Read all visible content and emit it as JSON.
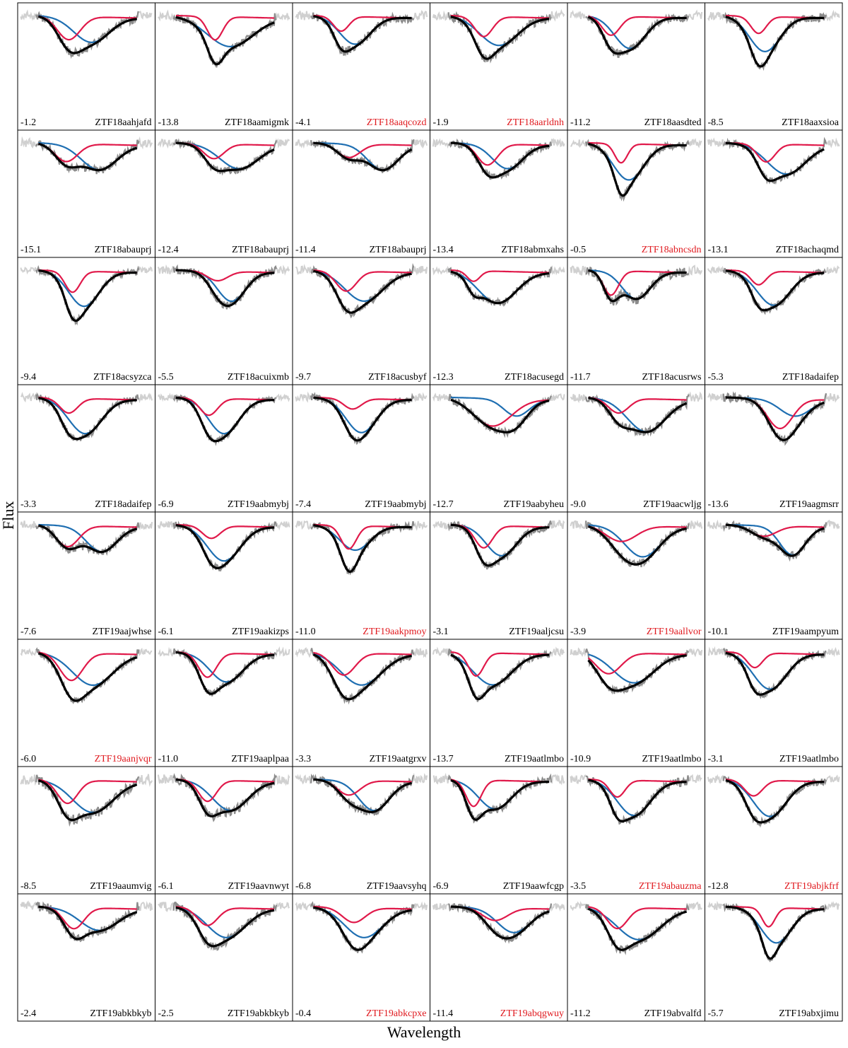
{
  "xlabel": "Wavelength",
  "ylabel": "Flux",
  "colors": {
    "observed_edge": "#d0d0d0",
    "observed": "#8c8c8c",
    "total_fit": "#000000",
    "hv_component": "#e0194a",
    "pv_component": "#1f6fb2",
    "highlight_name": "#e0191e",
    "normal_name": "#000000"
  },
  "chart_data": {
    "type": "line",
    "xlabel": "Wavelength",
    "ylabel": "Flux",
    "grid": false,
    "layout": "grid of panels, 8 rows x 6 columns",
    "series_styles": {
      "observed": "grey noisy spectrum",
      "total_fit": "black thick line",
      "hv_component": "red line",
      "pv_component": "blue line"
    },
    "panels": [
      {
        "phase": "-1.2",
        "name": "ZTF18aahjafd",
        "highlight": false,
        "red": [
          0.36,
          0.22,
          0.09
        ],
        "blue": [
          0.54,
          0.24,
          0.14
        ],
        "noise": 0.35
      },
      {
        "phase": "-13.8",
        "name": "ZTF18aamigmk",
        "highlight": false,
        "red": [
          0.43,
          0.22,
          0.06
        ],
        "blue": [
          0.55,
          0.28,
          0.18
        ],
        "noise": 0.35
      },
      {
        "phase": "-4.1",
        "name": "ZTF18aaqcozd",
        "highlight": true,
        "red": [
          0.34,
          0.14,
          0.06
        ],
        "blue": [
          0.45,
          0.26,
          0.12
        ],
        "noise": 0.4
      },
      {
        "phase": "-1.9",
        "name": "ZTF18aarldnh",
        "highlight": true,
        "red": [
          0.38,
          0.19,
          0.07
        ],
        "blue": [
          0.5,
          0.27,
          0.15
        ],
        "noise": 0.4
      },
      {
        "phase": "-11.2",
        "name": "ZTF18aasdted",
        "highlight": false,
        "red": [
          0.3,
          0.18,
          0.07
        ],
        "blue": [
          0.45,
          0.3,
          0.12
        ],
        "noise": 0.35
      },
      {
        "phase": "-8.5",
        "name": "ZTF18aaxsioa",
        "highlight": false,
        "red": [
          0.38,
          0.16,
          0.06
        ],
        "blue": [
          0.43,
          0.33,
          0.12
        ],
        "noise": 0.35
      },
      {
        "phase": "-15.1",
        "name": "ZTF18abauprj",
        "highlight": false,
        "red": [
          0.34,
          0.17,
          0.09
        ],
        "blue": [
          0.6,
          0.24,
          0.14
        ],
        "noise": 0.35
      },
      {
        "phase": "-12.4",
        "name": "ZTF18abauprj",
        "highlight": false,
        "red": [
          0.42,
          0.14,
          0.08
        ],
        "blue": [
          0.62,
          0.23,
          0.15
        ],
        "noise": 0.3
      },
      {
        "phase": "-11.4",
        "name": "ZTF18abauprj",
        "highlight": false,
        "red": [
          0.4,
          0.13,
          0.09
        ],
        "blue": [
          0.67,
          0.24,
          0.12
        ],
        "noise": 0.3
      },
      {
        "phase": "-13.4",
        "name": "ZTF18abmxahs",
        "highlight": false,
        "red": [
          0.41,
          0.2,
          0.08
        ],
        "blue": [
          0.57,
          0.23,
          0.12
        ],
        "noise": 0.35
      },
      {
        "phase": "-0.5",
        "name": "ZTF18abncsdn",
        "highlight": true,
        "red": [
          0.38,
          0.18,
          0.05
        ],
        "blue": [
          0.44,
          0.34,
          0.12
        ],
        "noise": 0.3
      },
      {
        "phase": "-13.1",
        "name": "ZTF18achaqmd",
        "highlight": false,
        "red": [
          0.44,
          0.17,
          0.07
        ],
        "blue": [
          0.6,
          0.28,
          0.15
        ],
        "noise": 0.3
      },
      {
        "phase": "-9.4",
        "name": "ZTF18acsyzca",
        "highlight": false,
        "red": [
          0.39,
          0.2,
          0.06
        ],
        "blue": [
          0.48,
          0.33,
          0.12
        ],
        "noise": 0.25
      },
      {
        "phase": "-5.5",
        "name": "ZTF18acuixmb",
        "highlight": false,
        "red": [
          0.45,
          0.09,
          0.08
        ],
        "blue": [
          0.56,
          0.28,
          0.11
        ],
        "noise": 0.35
      },
      {
        "phase": "-9.7",
        "name": "ZTF18acusbyf",
        "highlight": false,
        "red": [
          0.38,
          0.19,
          0.08
        ],
        "blue": [
          0.52,
          0.28,
          0.15
        ],
        "noise": 0.35
      },
      {
        "phase": "-12.3",
        "name": "ZTF18acusegd",
        "highlight": false,
        "red": [
          0.3,
          0.1,
          0.05
        ],
        "blue": [
          0.49,
          0.3,
          0.15
        ],
        "noise": 0.3
      },
      {
        "phase": "-11.7",
        "name": "ZTF18acusrws",
        "highlight": false,
        "red": [
          0.3,
          0.23,
          0.06
        ],
        "blue": [
          0.5,
          0.26,
          0.11
        ],
        "noise": 0.45
      },
      {
        "phase": "-5.3",
        "name": "ZTF18adaifep",
        "highlight": false,
        "red": [
          0.38,
          0.13,
          0.06
        ],
        "blue": [
          0.5,
          0.32,
          0.13
        ],
        "noise": 0.3
      },
      {
        "phase": "-3.3",
        "name": "ZTF18adaifep",
        "highlight": false,
        "red": [
          0.36,
          0.14,
          0.07
        ],
        "blue": [
          0.49,
          0.33,
          0.13
        ],
        "noise": 0.3
      },
      {
        "phase": "-6.9",
        "name": "ZTF19aabmybj",
        "highlight": false,
        "red": [
          0.38,
          0.16,
          0.07
        ],
        "blue": [
          0.5,
          0.33,
          0.12
        ],
        "noise": 0.25
      },
      {
        "phase": "-7.4",
        "name": "ZTF19aabmybj",
        "highlight": false,
        "red": [
          0.43,
          0.1,
          0.07
        ],
        "blue": [
          0.5,
          0.32,
          0.12
        ],
        "noise": 0.3
      },
      {
        "phase": "-12.7",
        "name": "ZTF19aabyheu",
        "highlight": false,
        "red": [
          0.45,
          0.26,
          0.15
        ],
        "blue": [
          0.64,
          0.16,
          0.1
        ],
        "noise": 0.3
      },
      {
        "phase": "-9.0",
        "name": "ZTF19aacwljg",
        "highlight": false,
        "red": [
          0.36,
          0.14,
          0.08
        ],
        "blue": [
          0.58,
          0.31,
          0.15
        ],
        "noise": 0.35
      },
      {
        "phase": "-13.6",
        "name": "ZTF19aagmsrr",
        "highlight": false,
        "red": [
          0.55,
          0.28,
          0.1
        ],
        "blue": [
          0.67,
          0.16,
          0.12
        ],
        "noise": 0.35
      },
      {
        "phase": "-7.6",
        "name": "ZTF19aajwhse",
        "highlight": false,
        "red": [
          0.35,
          0.2,
          0.09
        ],
        "blue": [
          0.62,
          0.24,
          0.12
        ],
        "noise": 0.35
      },
      {
        "phase": "-6.1",
        "name": "ZTF19aakizps",
        "highlight": false,
        "red": [
          0.4,
          0.12,
          0.07
        ],
        "blue": [
          0.5,
          0.33,
          0.13
        ],
        "noise": 0.3
      },
      {
        "phase": "-11.0",
        "name": "ZTF19aakpmoy",
        "highlight": true,
        "red": [
          0.4,
          0.22,
          0.06
        ],
        "blue": [
          0.45,
          0.23,
          0.12
        ],
        "noise": 0.35
      },
      {
        "phase": "-3.1",
        "name": "ZTF19aaljcsu",
        "highlight": false,
        "red": [
          0.38,
          0.21,
          0.07
        ],
        "blue": [
          0.52,
          0.28,
          0.12
        ],
        "noise": 0.35
      },
      {
        "phase": "-3.9",
        "name": "ZTF19aallvor",
        "highlight": true,
        "red": [
          0.38,
          0.15,
          0.12
        ],
        "blue": [
          0.55,
          0.29,
          0.14
        ],
        "noise": 0.35
      },
      {
        "phase": "-10.1",
        "name": "ZTF19aampyum",
        "highlight": false,
        "red": [
          0.42,
          0.1,
          0.1
        ],
        "blue": [
          0.65,
          0.27,
          0.1
        ],
        "noise": 0.35
      },
      {
        "phase": "-6.0",
        "name": "ZTF19aanjvqr",
        "highlight": true,
        "red": [
          0.38,
          0.26,
          0.09
        ],
        "blue": [
          0.55,
          0.3,
          0.16
        ],
        "noise": 0.25
      },
      {
        "phase": "-11.0",
        "name": "ZTF19aaplpaa",
        "highlight": false,
        "red": [
          0.37,
          0.23,
          0.07
        ],
        "blue": [
          0.52,
          0.27,
          0.13
        ],
        "noise": 0.3
      },
      {
        "phase": "-3.3",
        "name": "ZTF19aatgrxv",
        "highlight": false,
        "red": [
          0.36,
          0.21,
          0.09
        ],
        "blue": [
          0.5,
          0.3,
          0.16
        ],
        "noise": 0.35
      },
      {
        "phase": "-13.7",
        "name": "ZTF19aatlmbo",
        "highlight": false,
        "red": [
          0.32,
          0.22,
          0.06
        ],
        "blue": [
          0.45,
          0.3,
          0.15
        ],
        "noise": 0.3
      },
      {
        "phase": "-10.9",
        "name": "ZTF19aatlmbo",
        "highlight": false,
        "red": [
          0.28,
          0.2,
          0.1
        ],
        "blue": [
          0.48,
          0.28,
          0.16
        ],
        "noise": 0.3
      },
      {
        "phase": "-3.1",
        "name": "ZTF19aatlmbo",
        "highlight": false,
        "red": [
          0.35,
          0.14,
          0.06
        ],
        "blue": [
          0.47,
          0.34,
          0.13
        ],
        "noise": 0.3
      },
      {
        "phase": "-8.5",
        "name": "ZTF19aaumvig",
        "highlight": false,
        "red": [
          0.35,
          0.22,
          0.08
        ],
        "blue": [
          0.55,
          0.3,
          0.16
        ],
        "noise": 0.45
      },
      {
        "phase": "-6.1",
        "name": "ZTF19aavnwyt",
        "highlight": false,
        "red": [
          0.37,
          0.2,
          0.07
        ],
        "blue": [
          0.55,
          0.28,
          0.14
        ],
        "noise": 0.4
      },
      {
        "phase": "-6.8",
        "name": "ZTF19aavsyhq",
        "highlight": false,
        "red": [
          0.4,
          0.14,
          0.09
        ],
        "blue": [
          0.6,
          0.28,
          0.12
        ],
        "noise": 0.35
      },
      {
        "phase": "-6.9",
        "name": "ZTF19aawfcgp",
        "highlight": false,
        "red": [
          0.3,
          0.25,
          0.06
        ],
        "blue": [
          0.47,
          0.27,
          0.13
        ],
        "noise": 0.35
      },
      {
        "phase": "-3.5",
        "name": "ZTF19abauzma",
        "highlight": true,
        "red": [
          0.35,
          0.16,
          0.06
        ],
        "blue": [
          0.48,
          0.33,
          0.13
        ],
        "noise": 0.35
      },
      {
        "phase": "-12.8",
        "name": "ZTF19abjkfrf",
        "highlight": true,
        "red": [
          0.34,
          0.15,
          0.07
        ],
        "blue": [
          0.47,
          0.34,
          0.13
        ],
        "noise": 0.3
      },
      {
        "phase": "-2.4",
        "name": "ZTF19abkbkyb",
        "highlight": false,
        "red": [
          0.4,
          0.2,
          0.08
        ],
        "blue": [
          0.6,
          0.21,
          0.15
        ],
        "noise": 0.4
      },
      {
        "phase": "-2.5",
        "name": "ZTF19abkbkyb",
        "highlight": false,
        "red": [
          0.37,
          0.17,
          0.08
        ],
        "blue": [
          0.52,
          0.28,
          0.15
        ],
        "noise": 0.4
      },
      {
        "phase": "-0.4",
        "name": "ZTF19abkcpxe",
        "highlight": true,
        "red": [
          0.44,
          0.14,
          0.09
        ],
        "blue": [
          0.52,
          0.28,
          0.15
        ],
        "noise": 0.3
      },
      {
        "phase": "-11.4",
        "name": "ZTF19abqgwuy",
        "highlight": true,
        "red": [
          0.47,
          0.12,
          0.1
        ],
        "blue": [
          0.62,
          0.23,
          0.13
        ],
        "noise": 0.3
      },
      {
        "phase": "-11.2",
        "name": "ZTF19abvalfd",
        "highlight": false,
        "red": [
          0.35,
          0.2,
          0.08
        ],
        "blue": [
          0.52,
          0.3,
          0.17
        ],
        "noise": 0.35
      },
      {
        "phase": "-5.7",
        "name": "ZTF19abxjimu",
        "highlight": false,
        "red": [
          0.46,
          0.18,
          0.05
        ],
        "blue": [
          0.52,
          0.33,
          0.12
        ],
        "noise": 0.3
      }
    ]
  }
}
